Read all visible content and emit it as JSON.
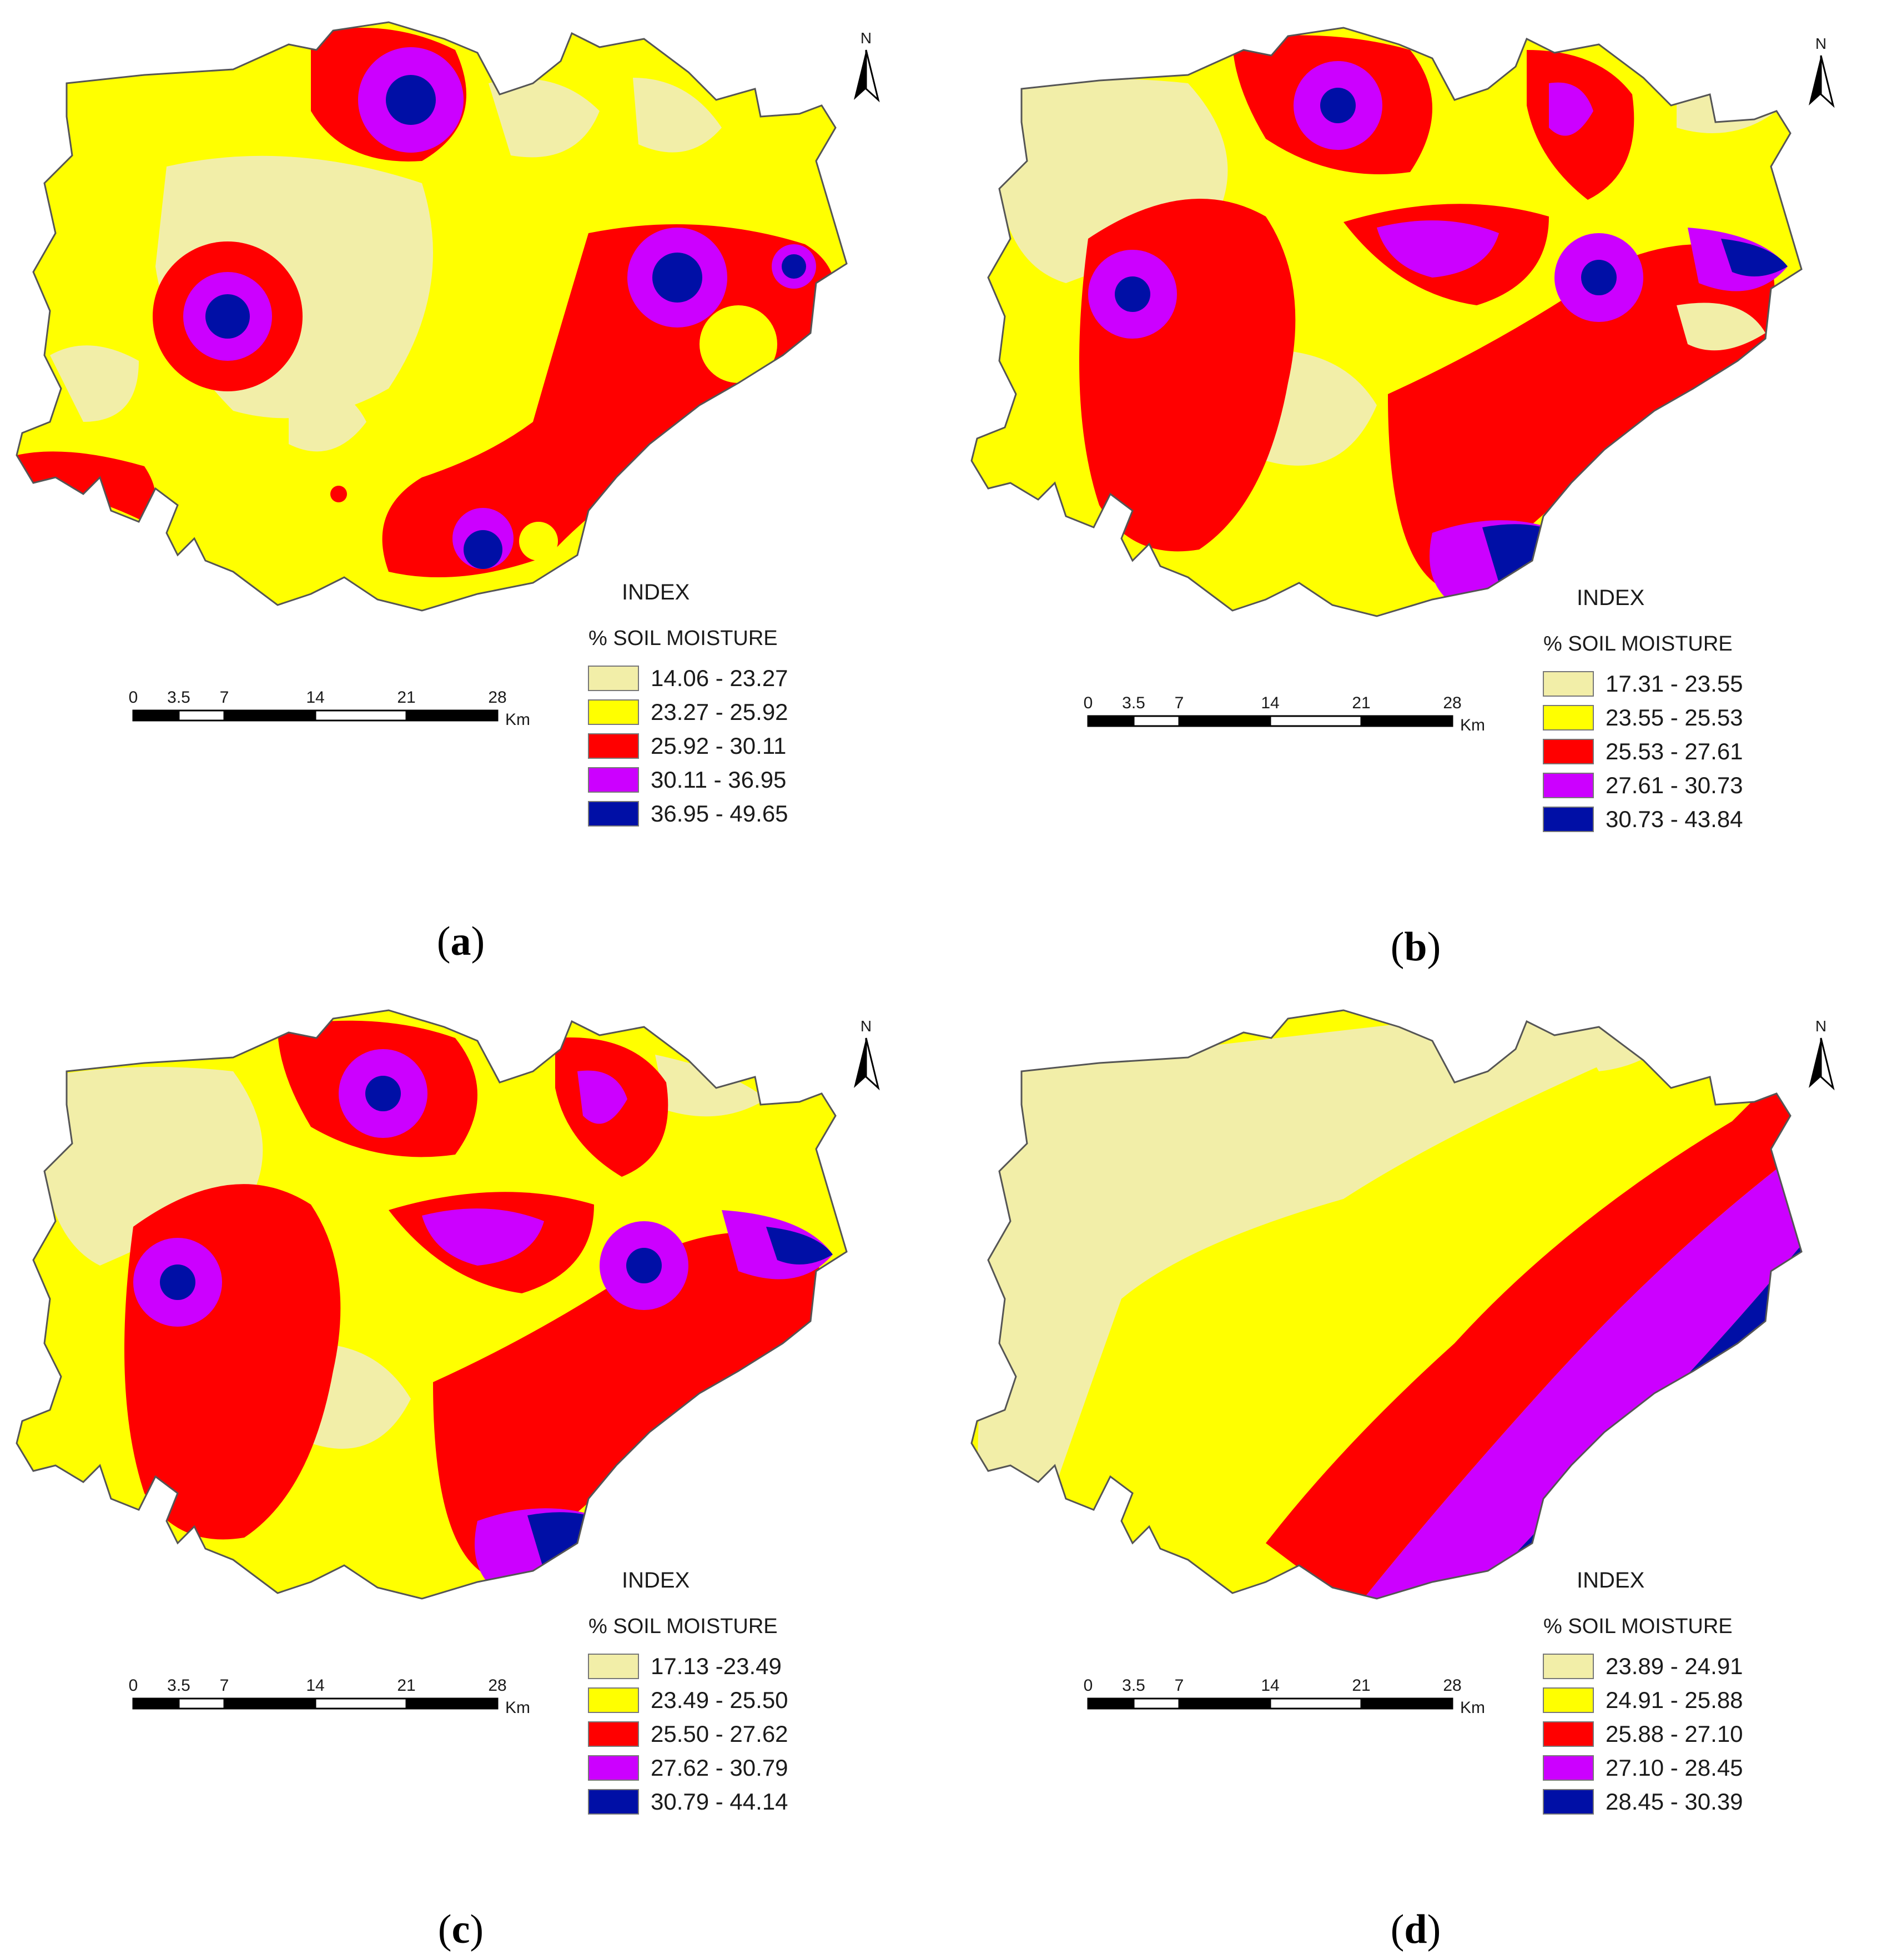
{
  "colors": {
    "class1": "#F2EEA8",
    "class2": "#FFFF00",
    "class3": "#FF0000",
    "class4": "#CC00FF",
    "class5": "#000FA6",
    "outline": "#555555"
  },
  "north_label": "N",
  "scale": {
    "ticks": [
      "0",
      "3.5",
      "7",
      "14",
      "21",
      "28"
    ],
    "unit": "Km"
  },
  "panels": [
    {
      "id": "a",
      "caption_open": "(",
      "caption_letter": "a",
      "caption_close": ")",
      "index_title": "INDEX",
      "legend_title": "% SOIL MOISTURE",
      "legend_items": [
        "14.06 - 23.27",
        "23.27 - 25.92",
        "25.92 - 30.11",
        "30.11 - 36.95",
        "36.95 - 49.65"
      ]
    },
    {
      "id": "b",
      "caption_open": "(",
      "caption_letter": "b",
      "caption_close": ")",
      "index_title": "INDEX",
      "legend_title": "% SOIL MOISTURE",
      "legend_items": [
        "17.31 - 23.55",
        "23.55 - 25.53",
        "25.53 - 27.61",
        "27.61 - 30.73",
        "30.73 - 43.84"
      ]
    },
    {
      "id": "c",
      "caption_open": "(",
      "caption_letter": "c",
      "caption_close": ")",
      "index_title": "INDEX",
      "legend_title": "% SOIL MOISTURE",
      "legend_items": [
        "17.13 -23.49",
        "23.49 - 25.50",
        "25.50 - 27.62",
        "27.62 - 30.79",
        "30.79 - 44.14"
      ]
    },
    {
      "id": "d",
      "caption_open": "(",
      "caption_letter": "d",
      "caption_close": ")",
      "index_title": "INDEX",
      "legend_title": "% SOIL MOISTURE",
      "legend_items": [
        "23.89 - 24.91",
        "24.91 - 25.88",
        "25.88 - 27.10",
        "27.10 - 28.45",
        "28.45 - 30.39"
      ]
    }
  ]
}
